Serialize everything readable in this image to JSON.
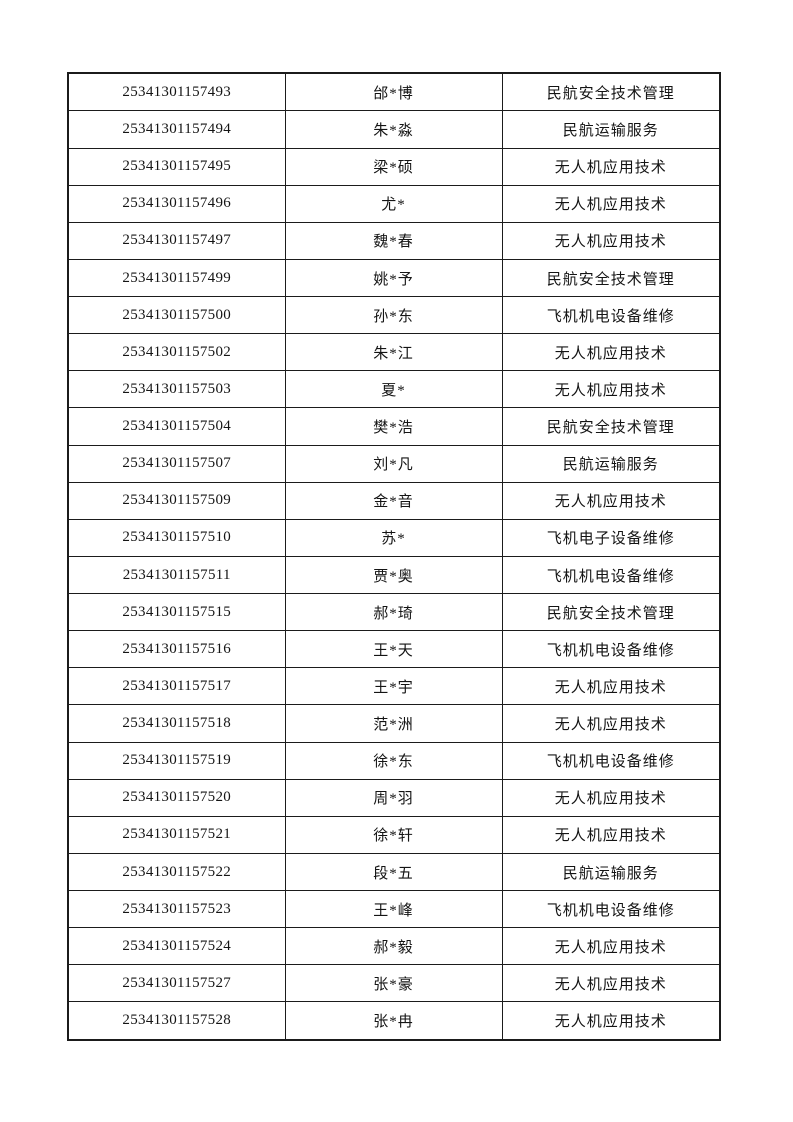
{
  "page": {
    "background_color": "#ffffff",
    "border_color": "#1b1b1b",
    "text_color": "#141414"
  },
  "table": {
    "columns": [
      "candidate_id",
      "name",
      "major"
    ],
    "rows": [
      {
        "id": "25341301157493",
        "name": "邰*博",
        "major": "民航安全技术管理"
      },
      {
        "id": "25341301157494",
        "name": "朱*淼",
        "major": "民航运输服务"
      },
      {
        "id": "25341301157495",
        "name": "梁*硕",
        "major": "无人机应用技术"
      },
      {
        "id": "25341301157496",
        "name": "尤*",
        "major": "无人机应用技术"
      },
      {
        "id": "25341301157497",
        "name": "魏*春",
        "major": "无人机应用技术"
      },
      {
        "id": "25341301157499",
        "name": "姚*予",
        "major": "民航安全技术管理"
      },
      {
        "id": "25341301157500",
        "name": "孙*东",
        "major": "飞机机电设备维修"
      },
      {
        "id": "25341301157502",
        "name": "朱*江",
        "major": "无人机应用技术"
      },
      {
        "id": "25341301157503",
        "name": "夏*",
        "major": "无人机应用技术"
      },
      {
        "id": "25341301157504",
        "name": "樊*浩",
        "major": "民航安全技术管理"
      },
      {
        "id": "25341301157507",
        "name": "刘*凡",
        "major": "民航运输服务"
      },
      {
        "id": "25341301157509",
        "name": "金*音",
        "major": "无人机应用技术"
      },
      {
        "id": "25341301157510",
        "name": "苏*",
        "major": "飞机电子设备维修"
      },
      {
        "id": "25341301157511",
        "name": "贾*奥",
        "major": "飞机机电设备维修"
      },
      {
        "id": "25341301157515",
        "name": "郝*琦",
        "major": "民航安全技术管理"
      },
      {
        "id": "25341301157516",
        "name": "王*天",
        "major": "飞机机电设备维修"
      },
      {
        "id": "25341301157517",
        "name": "王*宇",
        "major": "无人机应用技术"
      },
      {
        "id": "25341301157518",
        "name": "范*洲",
        "major": "无人机应用技术"
      },
      {
        "id": "25341301157519",
        "name": "徐*东",
        "major": "飞机机电设备维修"
      },
      {
        "id": "25341301157520",
        "name": "周*羽",
        "major": "无人机应用技术"
      },
      {
        "id": "25341301157521",
        "name": "徐*轩",
        "major": "无人机应用技术"
      },
      {
        "id": "25341301157522",
        "name": "段*五",
        "major": "民航运输服务"
      },
      {
        "id": "25341301157523",
        "name": "王*峰",
        "major": "飞机机电设备维修"
      },
      {
        "id": "25341301157524",
        "name": "郝*毅",
        "major": "无人机应用技术"
      },
      {
        "id": "25341301157527",
        "name": "张*豪",
        "major": "无人机应用技术"
      },
      {
        "id": "25341301157528",
        "name": "张*冉",
        "major": "无人机应用技术"
      }
    ]
  }
}
